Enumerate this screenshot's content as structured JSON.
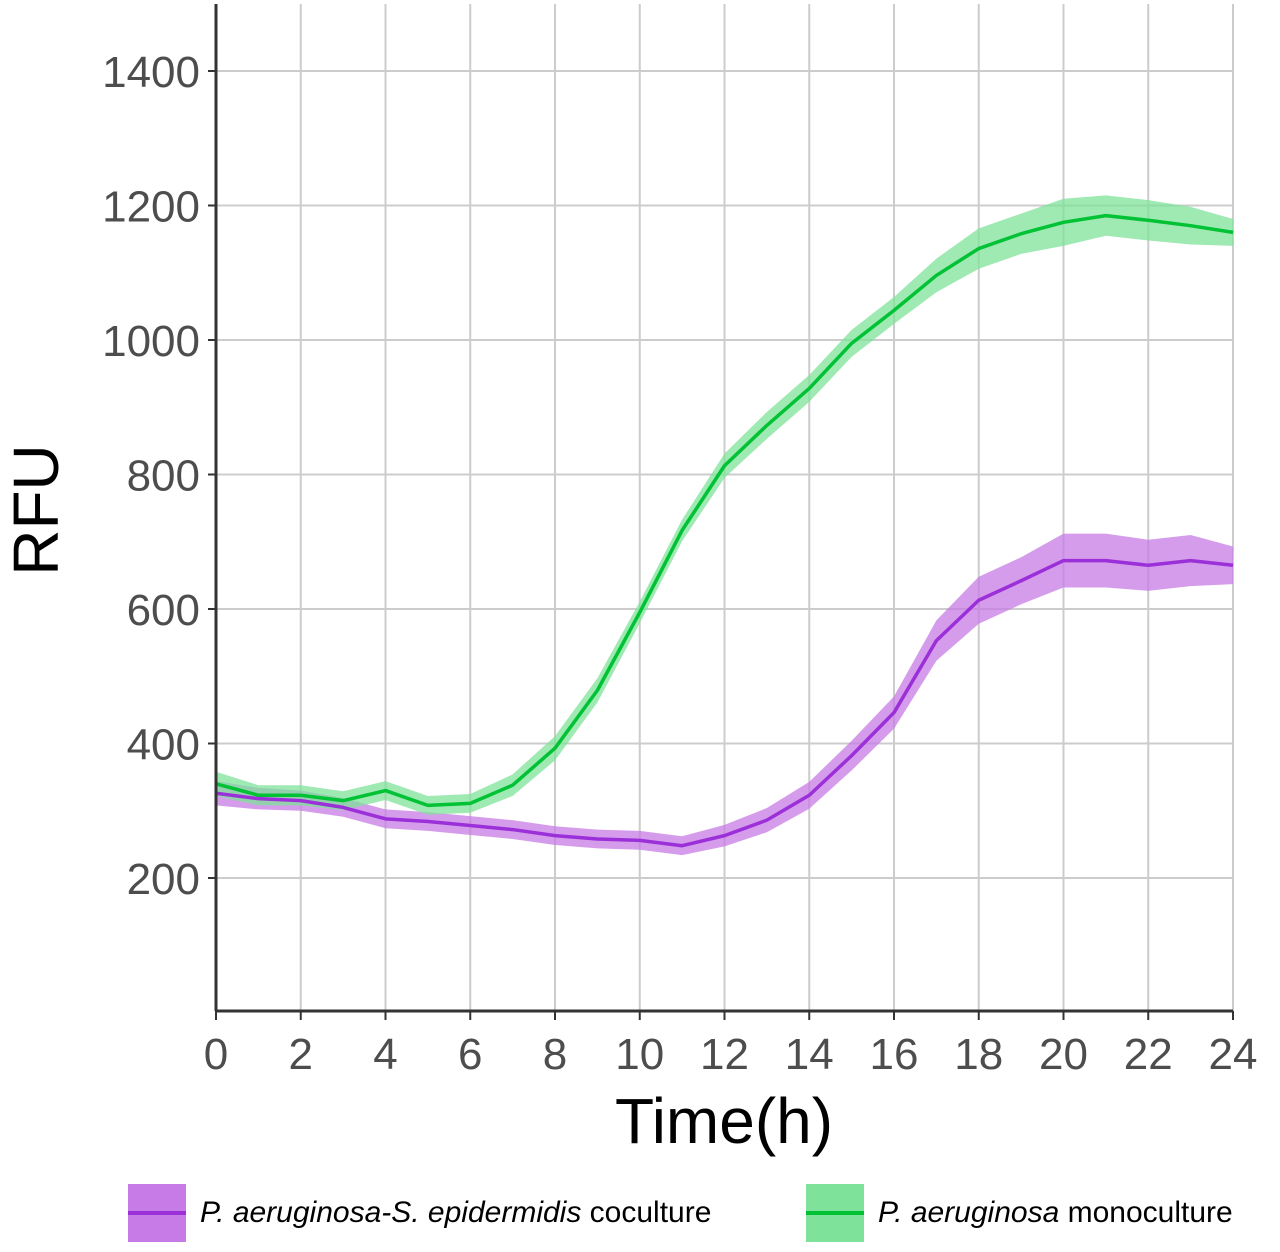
{
  "chart_data": {
    "type": "line",
    "title": "",
    "xlabel": "Time(h)",
    "ylabel": "RFU",
    "xlim": [
      0,
      24
    ],
    "ylim": [
      0,
      1500
    ],
    "x_ticks": [
      0,
      2,
      4,
      6,
      8,
      10,
      12,
      14,
      16,
      18,
      20,
      22,
      24
    ],
    "y_ticks": [
      200,
      400,
      600,
      800,
      1000,
      1200,
      1400
    ],
    "grid": true,
    "legend_position": "bottom",
    "x": [
      0,
      1,
      2,
      3,
      4,
      5,
      6,
      7,
      8,
      9,
      10,
      11,
      12,
      13,
      14,
      15,
      16,
      17,
      18,
      19,
      20,
      21,
      22,
      23,
      24
    ],
    "series": [
      {
        "name": "P. aeruginosa-S. epidermidis coculture",
        "color": "#9b30d9",
        "band_color": "#c77be6",
        "values": [
          326,
          318,
          315,
          305,
          288,
          284,
          278,
          272,
          263,
          258,
          256,
          248,
          263,
          286,
          323,
          382,
          446,
          553,
          613,
          642,
          672,
          672,
          665,
          672,
          665
        ],
        "band_halfwidth": [
          18,
          16,
          15,
          14,
          14,
          14,
          14,
          14,
          14,
          14,
          14,
          14,
          16,
          18,
          20,
          22,
          24,
          30,
          35,
          35,
          40,
          40,
          38,
          38,
          28
        ]
      },
      {
        "name": "P. aeruginosa monoculture",
        "color": "#00c234",
        "band_color": "#7fe29a",
        "values": [
          340,
          323,
          323,
          315,
          330,
          308,
          311,
          338,
          393,
          479,
          595,
          717,
          813,
          873,
          928,
          995,
          1044,
          1096,
          1136,
          1158,
          1175,
          1185,
          1178,
          1170,
          1160
        ],
        "band_halfwidth": [
          18,
          15,
          15,
          14,
          14,
          14,
          14,
          16,
          18,
          18,
          16,
          16,
          18,
          20,
          20,
          20,
          20,
          25,
          30,
          30,
          35,
          30,
          30,
          28,
          20
        ]
      }
    ]
  },
  "axes": {
    "x_title": "Time(h)",
    "y_title": "RFU",
    "x_tick_labels": [
      "0",
      "2",
      "4",
      "6",
      "8",
      "10",
      "12",
      "14",
      "16",
      "18",
      "20",
      "22",
      "24"
    ],
    "y_tick_labels": [
      "200",
      "400",
      "600",
      "800",
      "1000",
      "1200",
      "1400"
    ]
  },
  "legend": {
    "items": [
      {
        "italic": "P. aeruginosa-S. epidermidis",
        "plain": " coculture",
        "fill": "#c77be6",
        "line": "#9b30d9"
      },
      {
        "italic": "P. aeruginosa",
        "plain": " monoculture",
        "fill": "#7fe29a",
        "line": "#00c234"
      }
    ]
  }
}
